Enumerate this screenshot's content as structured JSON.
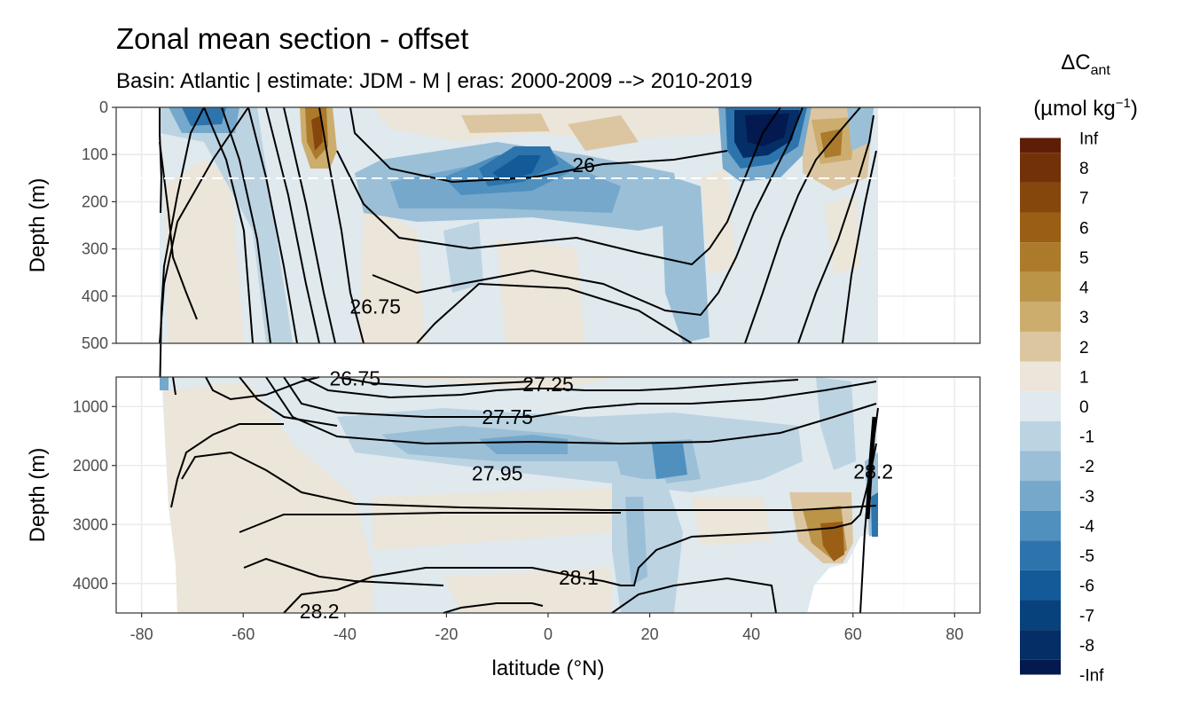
{
  "chart_data": {
    "type": "contour",
    "title": "Zonal mean section - offset",
    "subtitle": "Basin: Atlantic | estimate: JDM - M | eras: 2000-2009 --> 2010-2019",
    "xlabel": "latitude (°N)",
    "x_ticks": [
      -80,
      -60,
      -40,
      -20,
      0,
      20,
      40,
      60,
      80
    ],
    "x_tick_labels": [
      "-80",
      "-60",
      "-40",
      "-20",
      "0",
      "20",
      "40",
      "60",
      "80"
    ],
    "xlim": [
      -85,
      85
    ],
    "panels": [
      {
        "name": "upper",
        "ylabel": "Depth (m)",
        "ylim": [
          0,
          500
        ],
        "y_ticks": [
          0,
          100,
          200,
          300,
          400,
          500
        ],
        "y_tick_labels": [
          "0",
          "100",
          "200",
          "300",
          "400",
          "500"
        ],
        "reference_depth": 150,
        "contour_labels": [
          {
            "text": "26",
            "lat": 7,
            "depth": 122
          },
          {
            "text": "26.75",
            "lat": -34,
            "depth": 422
          }
        ]
      },
      {
        "name": "lower",
        "ylabel": "Depth (m)",
        "ylim": [
          500,
          4500
        ],
        "y_ticks": [
          1000,
          2000,
          3000,
          4000
        ],
        "y_tick_labels": [
          "1000",
          "2000",
          "3000",
          "4000"
        ],
        "contour_labels": [
          {
            "text": "26.75",
            "lat": -38,
            "depth": 520
          },
          {
            "text": "27.25",
            "lat": 0,
            "depth": 620
          },
          {
            "text": "27.75",
            "lat": -8,
            "depth": 1180
          },
          {
            "text": "27.95",
            "lat": -10,
            "depth": 2130
          },
          {
            "text": "28.1",
            "lat": 6,
            "depth": 3900
          },
          {
            "text": "28.2",
            "lat": -45,
            "depth": 4470
          },
          {
            "text": "28.2",
            "lat": 64,
            "depth": 2100
          }
        ]
      }
    ],
    "legend": {
      "title": "ΔC",
      "title_sub": "ant",
      "units_main": "(µmol kg",
      "units_exp": "−1",
      "units_close": ")",
      "labels": [
        "Inf",
        "8",
        "7",
        "6",
        "5",
        "4",
        "3",
        "2",
        "1",
        "0",
        "-1",
        "-2",
        "-3",
        "-4",
        "-5",
        "-6",
        "-7",
        "-8",
        "-Inf"
      ],
      "colors": [
        "#5e1d06",
        "#733108",
        "#86470c",
        "#9a5f14",
        "#ab7a2b",
        "#bb9448",
        "#ccad6e",
        "#dcc6a1",
        "#ece5d9",
        "#dfe9ee",
        "#bcd3e2",
        "#9bbfd7",
        "#76a8cb",
        "#4f90bf",
        "#2d74ac",
        "#125b98",
        "#08427d",
        "#052d66",
        "#03194f"
      ]
    }
  }
}
